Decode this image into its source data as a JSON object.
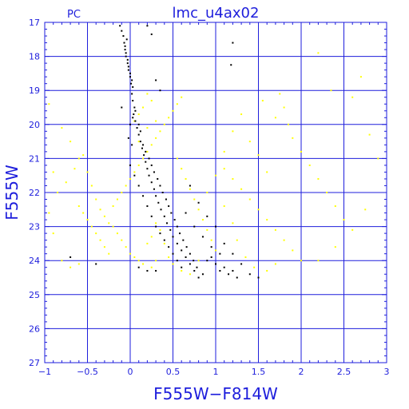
{
  "chart_data": {
    "type": "scatter",
    "title": "lmc_u4ax02",
    "corner_label": "PC",
    "xlabel": "F555W−F814W",
    "ylabel": "F555W",
    "xlim": [
      -1,
      3
    ],
    "ylim": [
      27,
      17
    ],
    "y_inverted": true,
    "grid": true,
    "x_ticks": [
      -1,
      -0.5,
      0,
      0.5,
      1,
      1.5,
      2,
      2.5,
      3
    ],
    "x_tick_labels": [
      "−1",
      "−0.5",
      "0",
      "0.5",
      "1",
      "1.5",
      "2",
      "2.5",
      "3"
    ],
    "y_ticks": [
      17,
      18,
      19,
      20,
      21,
      22,
      23,
      24,
      25,
      26,
      27
    ],
    "y_tick_labels": [
      "17",
      "18",
      "19",
      "20",
      "21",
      "22",
      "23",
      "24",
      "25",
      "26",
      "27"
    ],
    "colors": {
      "axis": "#1e1edc",
      "grid": "#1e1edc",
      "main_sequence": "#000000",
      "field": "#ffff00"
    },
    "series": [
      {
        "color": "#000000",
        "points": [
          [
            -0.12,
            17.1
          ],
          [
            -0.1,
            17.25
          ],
          [
            -0.08,
            17.4
          ],
          [
            -0.07,
            17.6
          ],
          [
            -0.06,
            17.8
          ],
          [
            -0.05,
            18.0
          ],
          [
            -0.03,
            18.2
          ],
          [
            -0.02,
            18.4
          ],
          [
            0.0,
            18.6
          ],
          [
            0.01,
            18.8
          ],
          [
            -0.04,
            17.5
          ],
          [
            -0.06,
            17.7
          ],
          [
            -0.05,
            17.9
          ],
          [
            -0.03,
            18.1
          ],
          [
            -0.02,
            18.3
          ],
          [
            0.0,
            18.5
          ],
          [
            0.02,
            18.7
          ],
          [
            0.03,
            18.9
          ],
          [
            0.02,
            19.1
          ],
          [
            0.03,
            19.3
          ],
          [
            0.05,
            19.5
          ],
          [
            0.04,
            19.7
          ],
          [
            0.06,
            19.9
          ],
          [
            0.08,
            20.1
          ],
          [
            0.1,
            20.3
          ],
          [
            0.12,
            20.5
          ],
          [
            0.14,
            20.7
          ],
          [
            0.16,
            20.9
          ],
          [
            0.18,
            21.1
          ],
          [
            0.2,
            21.3
          ],
          [
            0.22,
            21.5
          ],
          [
            0.25,
            21.7
          ],
          [
            0.28,
            21.9
          ],
          [
            0.3,
            22.1
          ],
          [
            0.33,
            22.3
          ],
          [
            0.36,
            22.5
          ],
          [
            0.4,
            22.7
          ],
          [
            0.43,
            22.9
          ],
          [
            0.47,
            23.1
          ],
          [
            0.5,
            23.3
          ],
          [
            0.55,
            23.5
          ],
          [
            0.6,
            23.7
          ],
          [
            0.65,
            23.9
          ],
          [
            0.7,
            24.1
          ],
          [
            0.75,
            24.3
          ],
          [
            0.8,
            24.5
          ],
          [
            0.06,
            19.6
          ],
          [
            0.1,
            20.0
          ],
          [
            0.12,
            20.2
          ],
          [
            0.15,
            20.6
          ],
          [
            0.18,
            20.8
          ],
          [
            0.22,
            21.0
          ],
          [
            0.25,
            21.2
          ],
          [
            0.28,
            21.4
          ],
          [
            0.32,
            21.6
          ],
          [
            0.35,
            21.8
          ],
          [
            0.38,
            22.0
          ],
          [
            0.42,
            22.2
          ],
          [
            0.45,
            22.4
          ],
          [
            0.48,
            22.6
          ],
          [
            0.52,
            22.8
          ],
          [
            0.55,
            23.0
          ],
          [
            0.58,
            23.2
          ],
          [
            0.62,
            23.4
          ],
          [
            0.66,
            23.6
          ],
          [
            0.7,
            23.8
          ],
          [
            0.74,
            24.0
          ],
          [
            0.78,
            24.2
          ],
          [
            0.85,
            24.4
          ],
          [
            0.9,
            24.0
          ],
          [
            0.95,
            23.9
          ],
          [
            1.0,
            24.1
          ],
          [
            1.05,
            24.3
          ],
          [
            1.1,
            24.2
          ],
          [
            1.15,
            24.4
          ],
          [
            1.2,
            24.3
          ],
          [
            0.6,
            24.2
          ],
          [
            0.55,
            24.0
          ],
          [
            0.5,
            23.8
          ],
          [
            0.45,
            23.6
          ],
          [
            0.4,
            23.4
          ],
          [
            0.35,
            23.2
          ],
          [
            0.3,
            23.0
          ],
          [
            0.25,
            22.7
          ],
          [
            0.2,
            22.4
          ],
          [
            0.15,
            22.1
          ],
          [
            0.1,
            21.8
          ],
          [
            0.05,
            21.5
          ],
          [
            0.0,
            21.2
          ],
          [
            0.02,
            20.6
          ],
          [
            -0.02,
            20.4
          ],
          [
            0.0,
            20.0
          ],
          [
            0.03,
            19.8
          ],
          [
            -0.1,
            19.5
          ],
          [
            1.2,
            17.6
          ],
          [
            1.18,
            18.25
          ],
          [
            0.2,
            17.1
          ],
          [
            0.25,
            17.35
          ],
          [
            0.3,
            18.7
          ],
          [
            0.35,
            19.0
          ],
          [
            0.7,
            21.8
          ],
          [
            0.8,
            22.3
          ],
          [
            0.9,
            22.7
          ],
          [
            1.0,
            23.0
          ],
          [
            1.1,
            23.5
          ],
          [
            1.2,
            23.8
          ],
          [
            1.3,
            24.1
          ],
          [
            1.4,
            24.4
          ],
          [
            1.5,
            24.5
          ],
          [
            1.25,
            24.5
          ],
          [
            0.3,
            24.3
          ],
          [
            0.2,
            24.3
          ],
          [
            0.1,
            24.2
          ],
          [
            -0.4,
            24.1
          ],
          [
            -0.7,
            23.9
          ],
          [
            0.65,
            22.6
          ],
          [
            0.75,
            23.0
          ],
          [
            0.85,
            23.3
          ],
          [
            0.95,
            23.6
          ],
          [
            1.05,
            23.8
          ]
        ]
      },
      {
        "color": "#ffff00",
        "points": [
          [
            -0.95,
            19.4
          ],
          [
            -0.8,
            20.1
          ],
          [
            -0.7,
            20.5
          ],
          [
            -0.6,
            21.0
          ],
          [
            -0.5,
            21.4
          ],
          [
            -0.45,
            21.8
          ],
          [
            -0.4,
            22.2
          ],
          [
            -0.35,
            22.5
          ],
          [
            -0.3,
            22.7
          ],
          [
            -0.25,
            22.9
          ],
          [
            -0.2,
            23.0
          ],
          [
            -0.15,
            23.2
          ],
          [
            -0.1,
            23.4
          ],
          [
            -0.05,
            23.6
          ],
          [
            0.0,
            23.8
          ],
          [
            0.05,
            23.9
          ],
          [
            0.1,
            24.0
          ],
          [
            0.15,
            24.1
          ],
          [
            0.2,
            23.5
          ],
          [
            0.25,
            23.3
          ],
          [
            -0.6,
            22.4
          ],
          [
            -0.55,
            22.6
          ],
          [
            -0.5,
            22.8
          ],
          [
            -0.45,
            23.0
          ],
          [
            -0.4,
            23.2
          ],
          [
            -0.35,
            23.4
          ],
          [
            -0.3,
            23.6
          ],
          [
            -0.25,
            23.8
          ],
          [
            -0.2,
            22.4
          ],
          [
            -0.15,
            22.2
          ],
          [
            -0.1,
            22.0
          ],
          [
            -0.05,
            21.8
          ],
          [
            0.0,
            21.6
          ],
          [
            0.05,
            21.4
          ],
          [
            0.1,
            21.2
          ],
          [
            0.15,
            21.0
          ],
          [
            0.2,
            20.8
          ],
          [
            0.25,
            20.6
          ],
          [
            0.3,
            20.4
          ],
          [
            0.35,
            20.2
          ],
          [
            0.4,
            20.0
          ],
          [
            0.45,
            19.8
          ],
          [
            0.5,
            19.6
          ],
          [
            0.55,
            19.4
          ],
          [
            0.6,
            19.2
          ],
          [
            0.2,
            19.1
          ],
          [
            0.25,
            19.3
          ],
          [
            0.15,
            19.5
          ],
          [
            0.1,
            19.7
          ],
          [
            0.05,
            19.9
          ],
          [
            0.55,
            21.0
          ],
          [
            0.6,
            21.3
          ],
          [
            0.65,
            21.6
          ],
          [
            0.7,
            21.9
          ],
          [
            0.75,
            22.2
          ],
          [
            0.8,
            22.5
          ],
          [
            0.85,
            22.8
          ],
          [
            0.9,
            23.1
          ],
          [
            0.95,
            23.4
          ],
          [
            1.0,
            23.7
          ],
          [
            1.1,
            21.3
          ],
          [
            1.2,
            21.6
          ],
          [
            1.3,
            21.9
          ],
          [
            1.4,
            22.2
          ],
          [
            1.5,
            22.5
          ],
          [
            1.6,
            22.8
          ],
          [
            1.7,
            23.1
          ],
          [
            1.8,
            23.4
          ],
          [
            1.9,
            23.7
          ],
          [
            2.0,
            24.0
          ],
          [
            1.75,
            19.1
          ],
          [
            1.8,
            19.5
          ],
          [
            1.85,
            20.0
          ],
          [
            1.9,
            20.4
          ],
          [
            2.0,
            20.8
          ],
          [
            2.1,
            21.2
          ],
          [
            2.2,
            21.6
          ],
          [
            2.3,
            22.0
          ],
          [
            2.4,
            22.4
          ],
          [
            2.5,
            22.8
          ],
          [
            2.2,
            17.9
          ],
          [
            2.35,
            19.0
          ],
          [
            2.6,
            19.2
          ],
          [
            2.7,
            18.6
          ],
          [
            2.8,
            20.3
          ],
          [
            2.9,
            21.0
          ],
          [
            2.75,
            22.5
          ],
          [
            2.6,
            23.1
          ],
          [
            2.4,
            23.6
          ],
          [
            2.2,
            24.0
          ],
          [
            1.4,
            20.5
          ],
          [
            1.5,
            20.9
          ],
          [
            1.6,
            21.4
          ],
          [
            1.7,
            19.8
          ],
          [
            1.55,
            19.3
          ],
          [
            1.3,
            19.7
          ],
          [
            1.2,
            20.2
          ],
          [
            1.1,
            20.8
          ],
          [
            1.0,
            21.5
          ],
          [
            0.9,
            22.0
          ],
          [
            -0.9,
            23.2
          ],
          [
            -0.85,
            22.0
          ],
          [
            -0.75,
            21.7
          ],
          [
            -0.65,
            21.3
          ],
          [
            -0.55,
            20.9
          ],
          [
            -0.95,
            22.6
          ],
          [
            -0.9,
            21.4
          ],
          [
            -0.8,
            24.0
          ],
          [
            -0.7,
            24.2
          ],
          [
            -0.6,
            24.1
          ],
          [
            0.3,
            22.9
          ],
          [
            0.35,
            23.1
          ],
          [
            0.4,
            23.5
          ],
          [
            0.45,
            23.9
          ],
          [
            0.5,
            24.1
          ],
          [
            0.6,
            24.3
          ],
          [
            0.7,
            24.4
          ],
          [
            0.8,
            24.0
          ],
          [
            0.3,
            24.0
          ],
          [
            0.25,
            24.2
          ],
          [
            1.1,
            22.4
          ],
          [
            1.2,
            22.9
          ],
          [
            1.25,
            23.4
          ],
          [
            1.35,
            23.9
          ],
          [
            1.45,
            24.2
          ],
          [
            1.6,
            24.3
          ],
          [
            1.7,
            24.1
          ],
          [
            0.1,
            20.5
          ],
          [
            0.2,
            20.1
          ],
          [
            0.3,
            19.9
          ]
        ]
      }
    ]
  }
}
